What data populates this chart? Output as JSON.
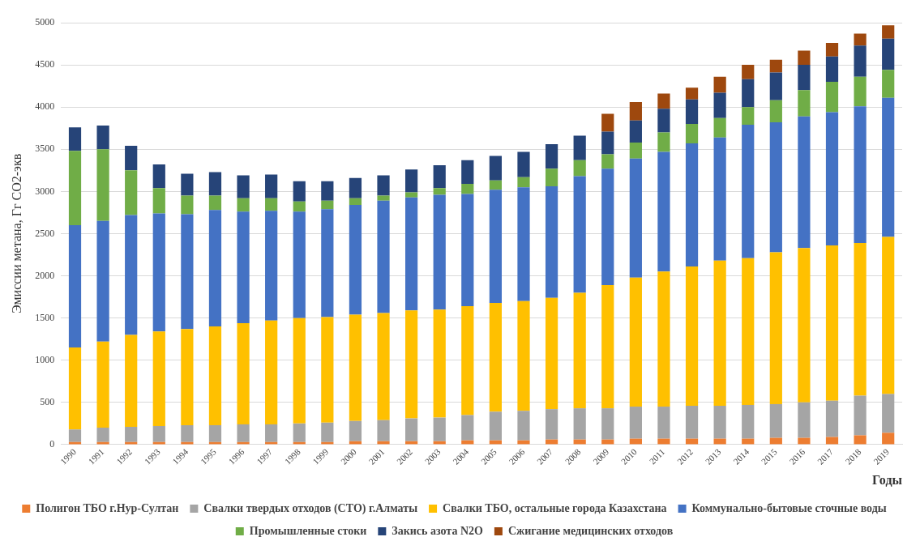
{
  "chart_data": {
    "type": "bar",
    "stacked": true,
    "xlabel": "Годы",
    "ylabel": "Эмиссии метана, Гг CO2-экв",
    "categories": [
      "1990",
      "1991",
      "1992",
      "1993",
      "1994",
      "1995",
      "1996",
      "1997",
      "1998",
      "1999",
      "2000",
      "2001",
      "2002",
      "2003",
      "2004",
      "2005",
      "2006",
      "2007",
      "2008",
      "2009",
      "2010",
      "2011",
      "2012",
      "2013",
      "2014",
      "2015",
      "2016",
      "2017",
      "2018",
      "2019"
    ],
    "ylim": [
      0,
      5000
    ],
    "yticks": [
      0,
      500,
      1000,
      1500,
      2000,
      2500,
      3000,
      3500,
      4000,
      4500,
      5000
    ],
    "grid": "y",
    "legend": "bottom",
    "series": [
      {
        "name": "Полигон ТБО г.Нур-Султан",
        "color": "#ed7d31",
        "values": [
          30,
          30,
          30,
          30,
          30,
          30,
          30,
          30,
          30,
          30,
          40,
          40,
          40,
          40,
          50,
          50,
          50,
          60,
          60,
          60,
          70,
          70,
          70,
          70,
          70,
          80,
          80,
          90,
          110,
          140
        ]
      },
      {
        "name": "Свалки твердых отходов (СТО) г.Алматы",
        "color": "#a5a5a5",
        "values": [
          150,
          170,
          180,
          190,
          200,
          200,
          210,
          210,
          220,
          230,
          240,
          250,
          270,
          280,
          300,
          340,
          350,
          360,
          370,
          370,
          380,
          380,
          390,
          390,
          400,
          400,
          420,
          430,
          470,
          460
        ]
      },
      {
        "name": "Свалки ТБО, остальные города Казахстана",
        "color": "#ffc000",
        "values": [
          970,
          1020,
          1090,
          1120,
          1140,
          1170,
          1200,
          1230,
          1250,
          1250,
          1260,
          1270,
          1280,
          1280,
          1290,
          1290,
          1300,
          1320,
          1370,
          1460,
          1530,
          1600,
          1650,
          1720,
          1740,
          1800,
          1830,
          1840,
          1810,
          1860
        ]
      },
      {
        "name": "Коммунально-бытовые сточные воды",
        "color": "#4472c4",
        "values": [
          1450,
          1430,
          1420,
          1400,
          1360,
          1380,
          1320,
          1300,
          1260,
          1280,
          1300,
          1330,
          1340,
          1360,
          1330,
          1340,
          1350,
          1320,
          1380,
          1380,
          1410,
          1420,
          1460,
          1460,
          1580,
          1540,
          1560,
          1580,
          1620,
          1650
        ]
      },
      {
        "name": "Промышленные стоки",
        "color": "#70ad47",
        "values": [
          880,
          850,
          530,
          300,
          220,
          170,
          160,
          150,
          120,
          100,
          80,
          60,
          60,
          80,
          120,
          110,
          120,
          210,
          190,
          170,
          190,
          230,
          230,
          230,
          210,
          260,
          310,
          360,
          350,
          330
        ]
      },
      {
        "name": "Закись азота N2O",
        "color": "#264478",
        "values": [
          280,
          280,
          290,
          280,
          260,
          280,
          270,
          280,
          240,
          230,
          240,
          240,
          270,
          270,
          280,
          290,
          300,
          290,
          290,
          270,
          260,
          280,
          290,
          300,
          330,
          330,
          300,
          300,
          370,
          370
        ]
      },
      {
        "name": "Сжигание медицинских отходов",
        "color": "#9e480e",
        "values": [
          0,
          0,
          0,
          0,
          0,
          0,
          0,
          0,
          0,
          0,
          0,
          0,
          0,
          0,
          0,
          0,
          0,
          0,
          0,
          210,
          220,
          180,
          140,
          190,
          170,
          150,
          170,
          160,
          140,
          160
        ]
      }
    ]
  }
}
